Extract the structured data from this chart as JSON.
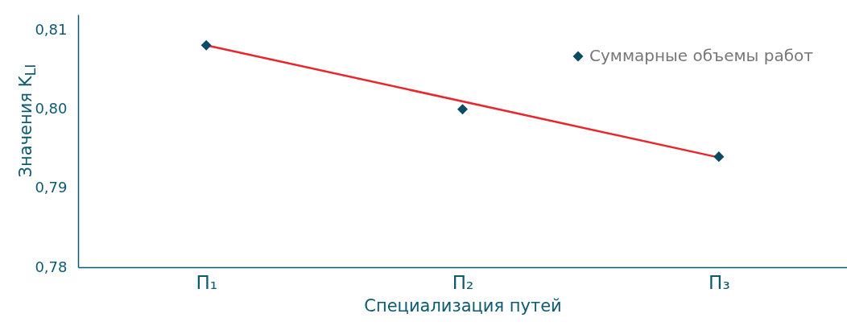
{
  "chart_data": {
    "type": "scatter",
    "xlabel": "Специализация путей",
    "ylabel": "Значения K$_{LI}$",
    "categories": [
      "П₁",
      "П₂",
      "П₃"
    ],
    "series": [
      {
        "name": "Суммарные объемы работ",
        "color": "#0d4a63",
        "marker": "diamond",
        "values": [
          0.8081,
          0.8,
          0.794
        ]
      },
      {
        "type": "line",
        "x": [
          "П₁",
          "П₃"
        ],
        "color": "#e8262b",
        "line_style": "solid",
        "marker": "none",
        "values": [
          0.8081,
          0.7939
        ]
      }
    ],
    "ylim": [
      0.78,
      0.812
    ],
    "yticks": [
      {
        "value": 0.78,
        "label": "0,78"
      },
      {
        "value": 0.79,
        "label": "0,79"
      },
      {
        "value": 0.8,
        "label": "0,80"
      },
      {
        "value": 0.81,
        "label": "0,81"
      }
    ],
    "grid": false,
    "legend": "top right"
  }
}
